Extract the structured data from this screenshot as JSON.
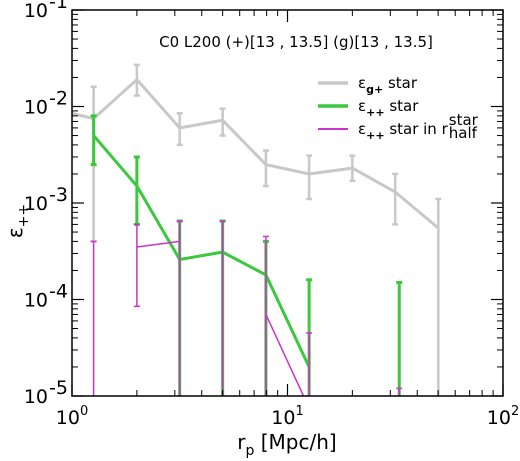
{
  "chart_data": {
    "type": "line",
    "title": "C0 L200 (+)[13 , 13.5] (g)[13 , 13.5]",
    "xlabel": "r_p [Mpc/h]",
    "ylabel": "ε++",
    "xscale": "log",
    "yscale": "log",
    "xlim": [
      1,
      100
    ],
    "ylim": [
      1e-05,
      0.1
    ],
    "x_ticks": [
      {
        "value": 1,
        "base": "10",
        "exp": "0"
      },
      {
        "value": 10,
        "base": "10",
        "exp": "1"
      },
      {
        "value": 100,
        "base": "10",
        "exp": "2"
      }
    ],
    "y_ticks": [
      {
        "value": 1e-05,
        "base": "10",
        "exp": "-5"
      },
      {
        "value": 0.0001,
        "base": "10",
        "exp": "-4"
      },
      {
        "value": 0.001,
        "base": "10",
        "exp": "-3"
      },
      {
        "value": 0.01,
        "base": "10",
        "exp": "-2"
      },
      {
        "value": 0.1,
        "base": "10",
        "exp": "-1"
      }
    ],
    "grid": false,
    "legend_position": "top-right",
    "series": [
      {
        "name": "ε_g+ star",
        "legend": {
          "sym": "ε",
          "sub": "g+",
          "rest": " star"
        },
        "color": "#c8c8c8",
        "width": 3,
        "x": [
          1.0,
          1.26,
          2.0,
          3.16,
          5.0,
          7.94,
          12.6,
          20.0,
          31.6,
          50.1
        ],
        "y": [
          0.0085,
          0.0075,
          0.019,
          0.006,
          0.0072,
          0.0025,
          0.002,
          0.0023,
          0.0013,
          0.00055
        ],
        "err_lo": [
          null,
          0.0004,
          0.013,
          0.004,
          0.005,
          0.0015,
          0.0011,
          0.0017,
          0.0006,
          8e-06
        ],
        "err_hi": [
          null,
          0.016,
          0.027,
          0.0085,
          0.0095,
          0.0035,
          0.0031,
          0.0031,
          0.002,
          0.0011
        ]
      },
      {
        "name": "ε_++ star",
        "legend": {
          "sym": "ε",
          "sub": "++",
          "rest": " star"
        },
        "color": "#3cc83c",
        "width": 3,
        "x": [
          1.26,
          2.0,
          3.16,
          5.0,
          7.94,
          12.6
        ],
        "y": [
          0.005,
          0.0015,
          0.00026,
          0.00031,
          0.00018,
          2e-05
        ],
        "err_lo": [
          0.0025,
          0.0006,
          8e-06,
          8e-06,
          8e-06,
          8e-06
        ],
        "err_hi": [
          0.008,
          0.003,
          0.00065,
          0.00065,
          0.0004,
          0.00016
        ],
        "extra_bars": [
          {
            "x": 33.0,
            "lo": 8e-06,
            "hi": 0.00015
          }
        ]
      },
      {
        "name": "ε_++ star in r_half^star",
        "legend": {
          "sym": "ε",
          "sub": "++",
          "rest": " star in r",
          "rsub": "half",
          "rsup": "star"
        },
        "color": "#cc33cc",
        "width": 1.5,
        "x": [
          2.0,
          3.16,
          5.0,
          7.94,
          12.6
        ],
        "y": [
          0.00035,
          0.0004,
          null,
          7e-05,
          7.5e-06
        ],
        "err_lo": [
          8.5e-05,
          8e-06,
          8e-06,
          8e-06,
          8e-06
        ],
        "err_hi": [
          0.0006,
          0.00065,
          0.00065,
          0.00045,
          4.5e-05
        ],
        "extra_bars": [
          {
            "x": 1.26,
            "lo": 8e-06,
            "hi": 0.0004
          },
          {
            "x": 33.0,
            "lo": 8e-06,
            "hi": 1.2e-05
          }
        ]
      }
    ]
  }
}
